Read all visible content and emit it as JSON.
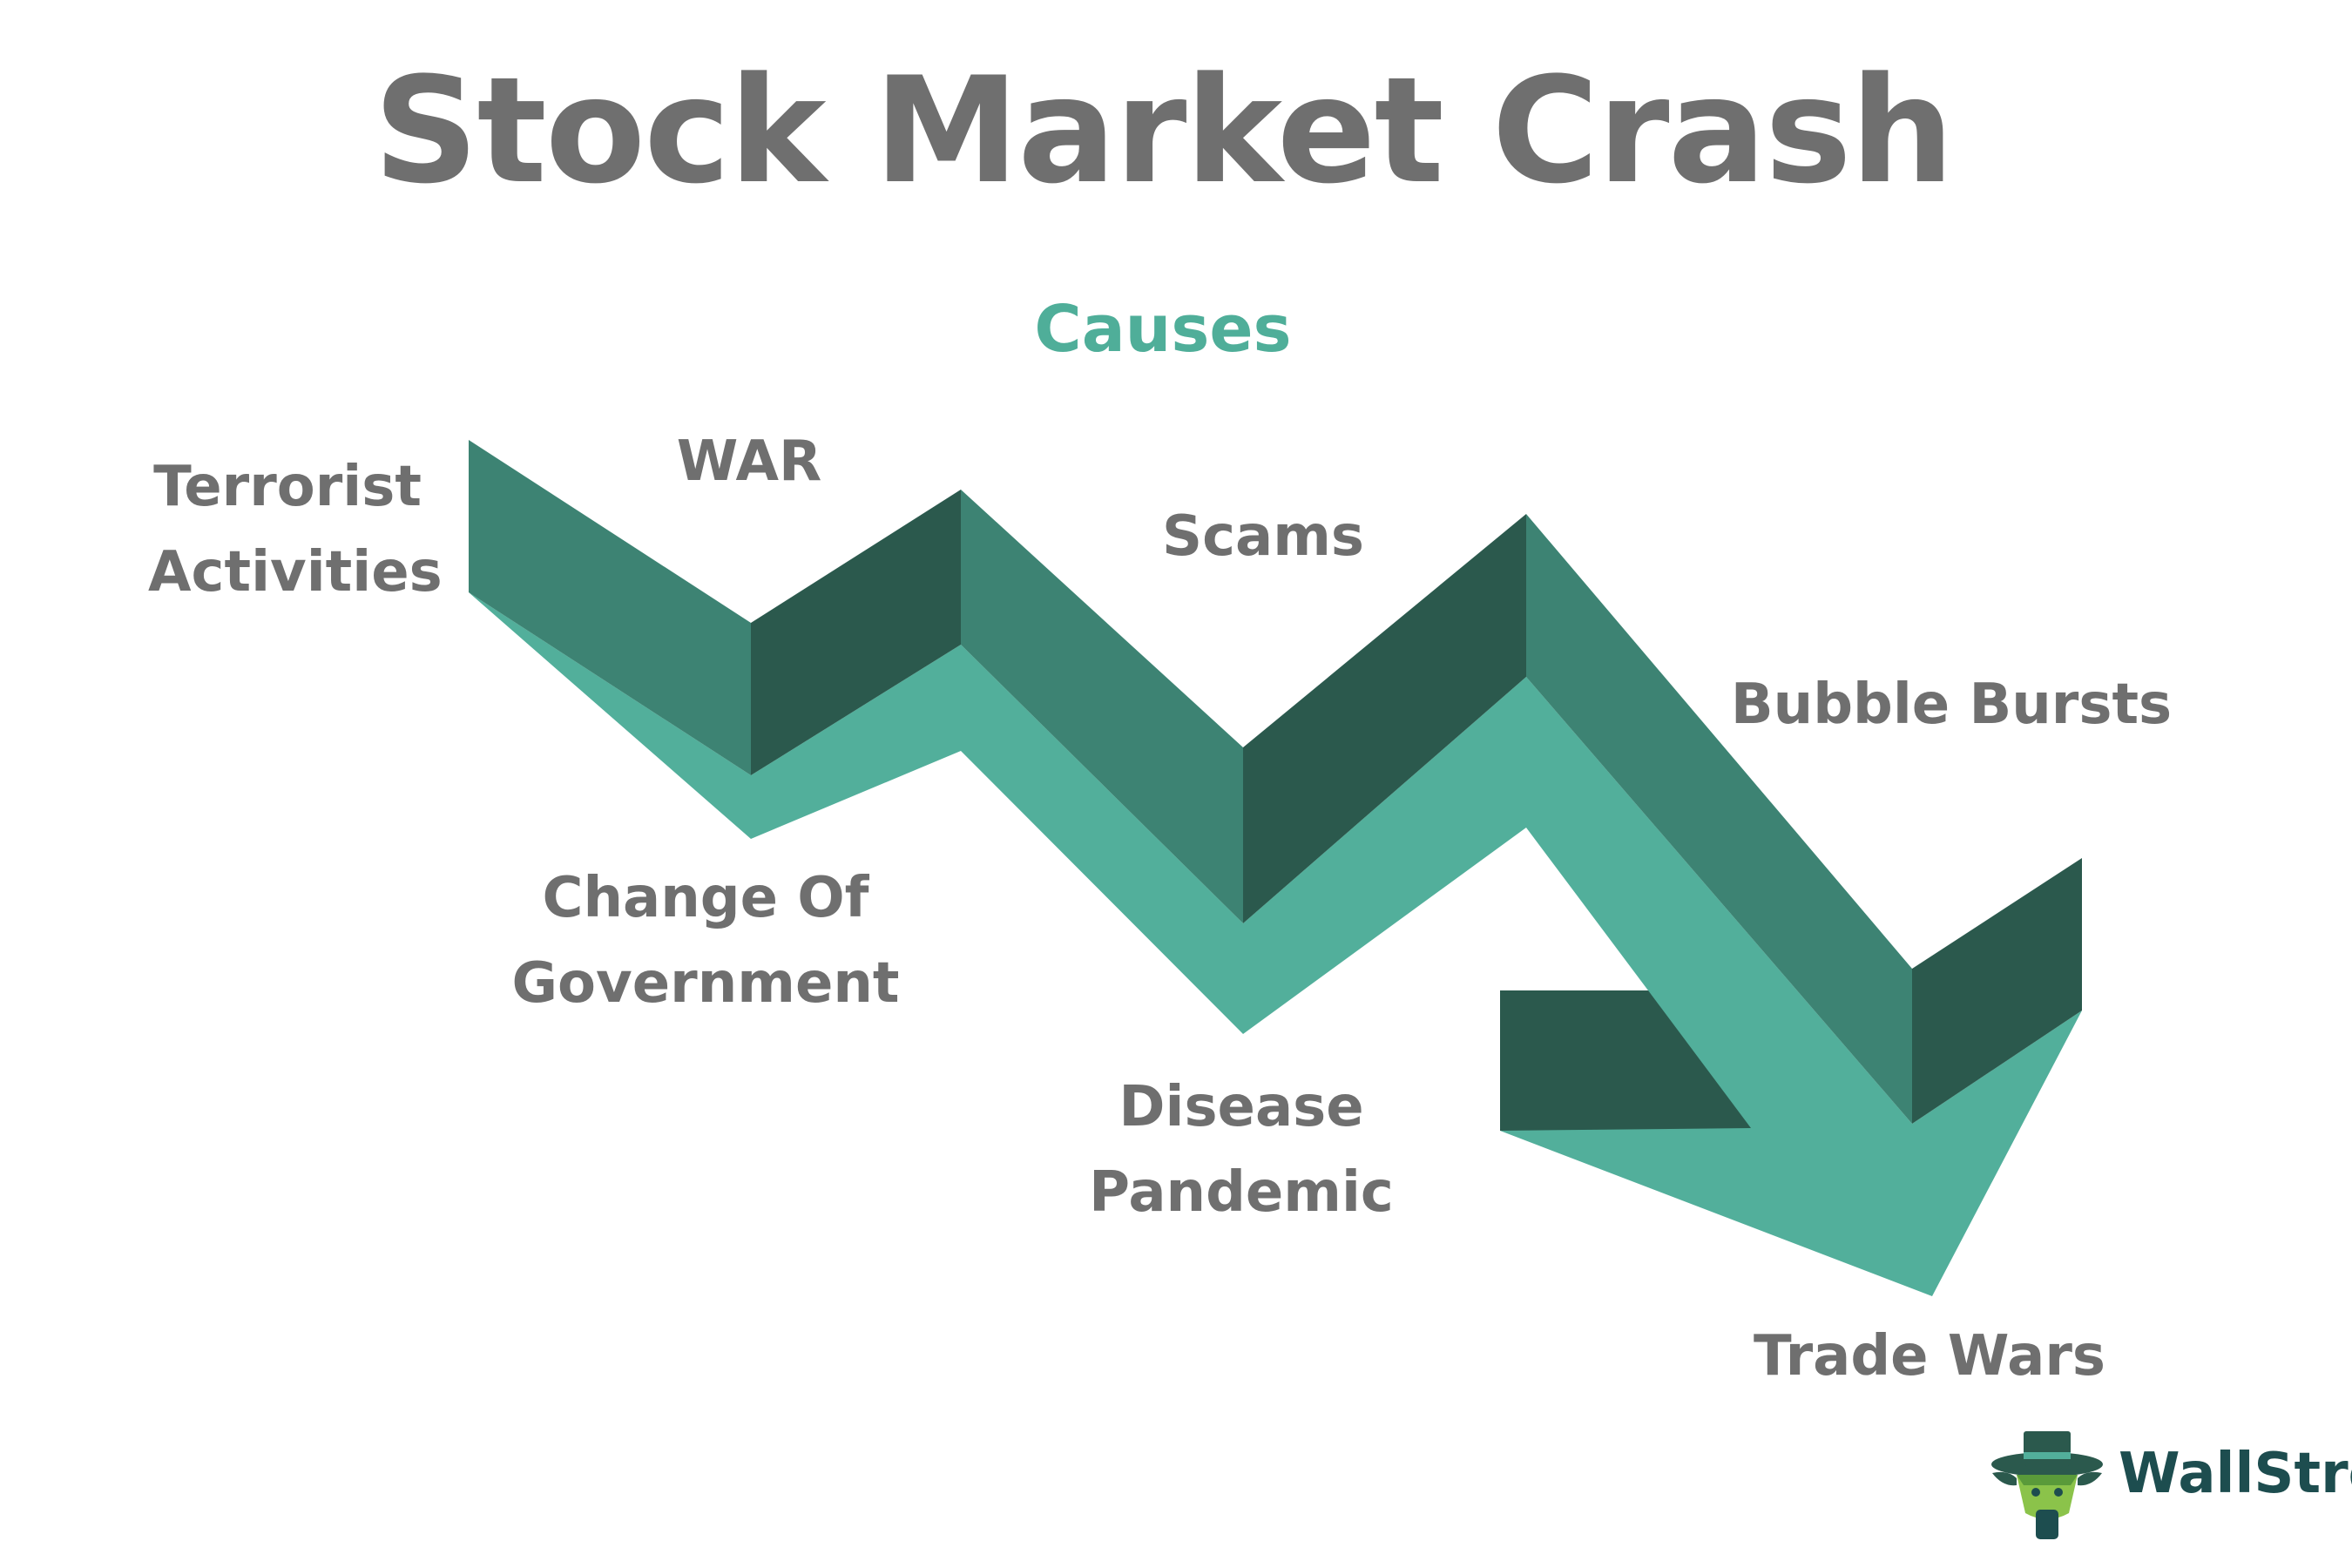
{
  "title": "Stock Market Crash",
  "subtitle": "Causes",
  "causes": {
    "terrorist": [
      "Terrorist",
      "Activities"
    ],
    "war": "WAR",
    "government": [
      "Change Of",
      "Government"
    ],
    "scams": "Scams",
    "pandemic": [
      "Disease",
      "Pandemic"
    ],
    "bubble": "Bubble Bursts",
    "trade": "Trade Wars"
  },
  "brand": {
    "name": "WallStre"
  },
  "colors": {
    "front_face": "#52af9b",
    "top_face_light": "#3d8373",
    "top_face_dark": "#2b594d",
    "text": "#6f6f6f",
    "accent": "#4fae99",
    "brand": "#1d4d4f"
  }
}
